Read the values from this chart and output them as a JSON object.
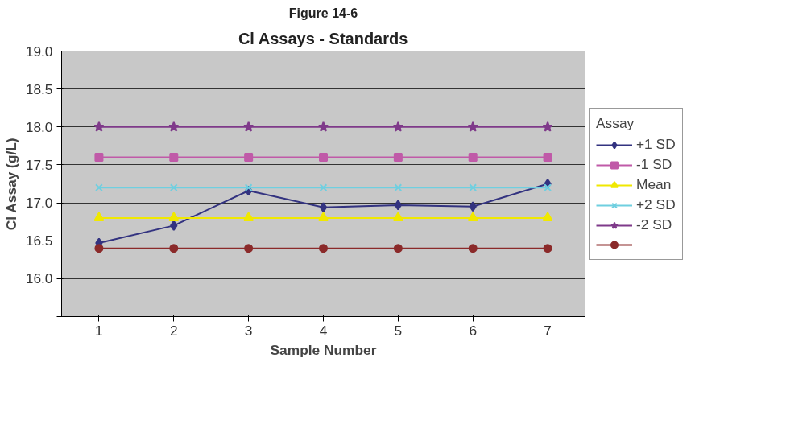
{
  "chart_data": {
    "type": "line",
    "title": "Figure 14-6",
    "subtitle": "Cl Assays - Standards",
    "xlabel": "Sample Number",
    "ylabel": "Cl Assay (g/L)",
    "legend_title": "Assay",
    "categories": [
      "1",
      "2",
      "3",
      "4",
      "5",
      "6",
      "7"
    ],
    "ylim": [
      15.5,
      19.0
    ],
    "yticks": [
      {
        "value": 15.5,
        "label": null
      },
      {
        "value": 16,
        "label": "16.0"
      },
      {
        "value": 16.5,
        "label": "16.5"
      },
      {
        "value": 17,
        "label": "17.0"
      },
      {
        "value": 17.5,
        "label": "17.5"
      },
      {
        "value": 18,
        "label": "18.0"
      },
      {
        "value": 18.5,
        "label": "18.5"
      },
      {
        "value": 19,
        "label": "19.0"
      }
    ],
    "grid": "y",
    "legend": "right",
    "series": [
      {
        "name": "+1 SD",
        "color": "#333380",
        "marker": "diamond",
        "values": [
          16.47,
          16.7,
          17.16,
          16.94,
          16.97,
          16.95,
          17.25
        ]
      },
      {
        "name": "-1 SD",
        "color": "#c05aa8",
        "marker": "square",
        "values": [
          17.6,
          17.6,
          17.6,
          17.6,
          17.6,
          17.6,
          17.6
        ]
      },
      {
        "name": "Mean",
        "color": "#f0e800",
        "marker": "triangle",
        "values": [
          16.8,
          16.8,
          16.8,
          16.8,
          16.8,
          16.8,
          16.8
        ]
      },
      {
        "name": "+2 SD",
        "color": "#6fcfe0",
        "marker": "cross",
        "values": [
          17.2,
          17.2,
          17.2,
          17.2,
          17.2,
          17.2,
          17.2
        ]
      },
      {
        "name": "-2 SD",
        "color": "#7f3a8a",
        "marker": "star",
        "values": [
          18.0,
          18.0,
          18.0,
          18.0,
          18.0,
          18.0,
          18.0
        ]
      },
      {
        "color": "#8b2a2a",
        "marker": "circle",
        "values": [
          16.4,
          16.4,
          16.4,
          16.4,
          16.4,
          16.4,
          16.4
        ]
      }
    ]
  }
}
